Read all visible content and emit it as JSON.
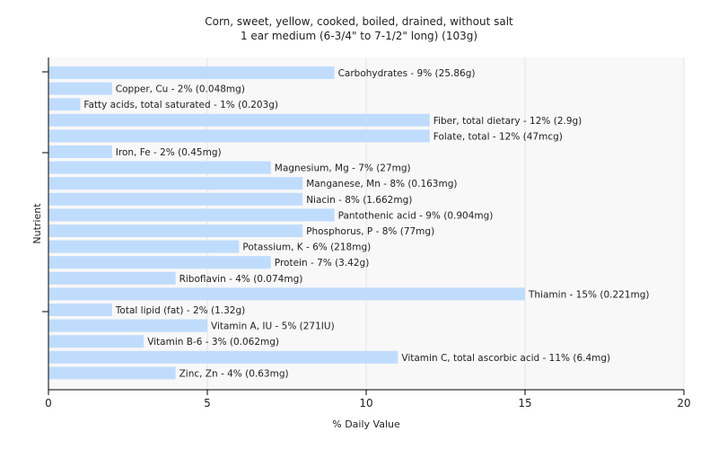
{
  "chart_data": {
    "type": "bar",
    "orientation": "horizontal",
    "title": [
      "Corn, sweet, yellow, cooked, boiled, drained, without salt",
      "1 ear medium (6-3/4\" to 7-1/2\" long) (103g)"
    ],
    "xlabel": "% Daily Value",
    "ylabel": "Nutrient",
    "xlim": [
      0,
      20
    ],
    "xticks": [
      0,
      5,
      10,
      15,
      20
    ],
    "grid": true,
    "bar_color": "#c0dcfc",
    "categories": [
      "Carbohydrates",
      "Copper, Cu",
      "Fatty acids, total saturated",
      "Fiber, total dietary",
      "Folate, total",
      "Iron, Fe",
      "Magnesium, Mg",
      "Manganese, Mn",
      "Niacin",
      "Pantothenic acid",
      "Phosphorus, P",
      "Potassium, K",
      "Protein",
      "Riboflavin",
      "Thiamin",
      "Total lipid (fat)",
      "Vitamin A, IU",
      "Vitamin B-6",
      "Vitamin C, total ascorbic acid",
      "Zinc, Zn"
    ],
    "values": [
      9,
      2,
      1,
      12,
      12,
      2,
      7,
      8,
      8,
      9,
      8,
      6,
      7,
      4,
      15,
      2,
      5,
      3,
      11,
      4
    ],
    "labels": [
      "Carbohydrates - 9% (25.86g)",
      "Copper, Cu - 2% (0.048mg)",
      "Fatty acids, total saturated - 1% (0.203g)",
      "Fiber, total dietary - 12% (2.9g)",
      "Folate, total - 12% (47mcg)",
      "Iron, Fe - 2% (0.45mg)",
      "Magnesium, Mg - 7% (27mg)",
      "Manganese, Mn - 8% (0.163mg)",
      "Niacin - 8% (1.662mg)",
      "Pantothenic acid - 9% (0.904mg)",
      "Phosphorus, P - 8% (77mg)",
      "Potassium, K - 6% (218mg)",
      "Protein - 7% (3.42g)",
      "Riboflavin - 4% (0.074mg)",
      "Thiamin - 15% (0.221mg)",
      "Total lipid (fat) - 2% (1.32g)",
      "Vitamin A, IU - 5% (271IU)",
      "Vitamin B-6 - 3% (0.062mg)",
      "Vitamin C, total ascorbic acid - 11% (6.4mg)",
      "Zinc, Zn - 4% (0.63mg)"
    ]
  }
}
